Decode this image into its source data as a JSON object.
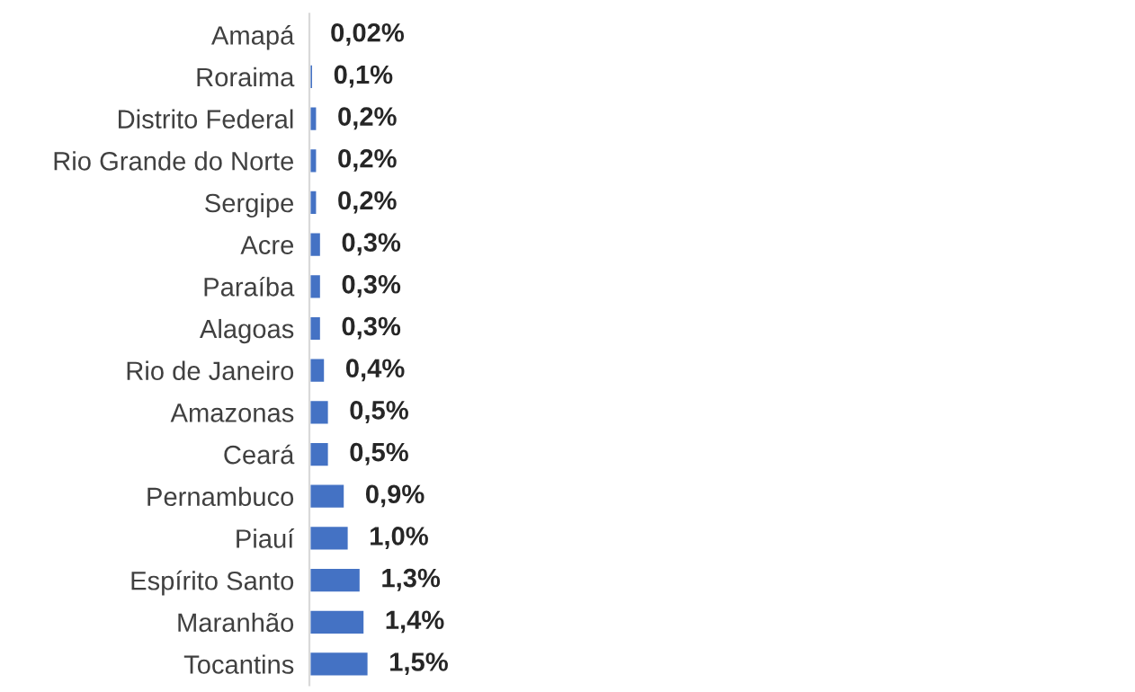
{
  "chart_data": {
    "type": "bar",
    "orientation": "horizontal",
    "categories": [
      "Amapá",
      "Roraima",
      "Distrito Federal",
      "Rio Grande do Norte",
      "Sergipe",
      "Acre",
      "Paraíba",
      "Alagoas",
      "Rio de Janeiro",
      "Amazonas",
      "Ceará",
      "Pernambuco",
      "Piauí",
      "Espírito Santo",
      "Maranhão",
      "Tocantins"
    ],
    "values": [
      0.02,
      0.1,
      0.2,
      0.2,
      0.2,
      0.3,
      0.3,
      0.3,
      0.4,
      0.5,
      0.5,
      0.9,
      1.0,
      1.3,
      1.4,
      1.5
    ],
    "value_labels": [
      "0,02%",
      "0,1%",
      "0,2%",
      "0,2%",
      "0,2%",
      "0,3%",
      "0,3%",
      "0,3%",
      "0,4%",
      "0,5%",
      "0,5%",
      "0,9%",
      "1,0%",
      "1,3%",
      "1,4%",
      "1,5%"
    ],
    "color": "#4472c4"
  }
}
